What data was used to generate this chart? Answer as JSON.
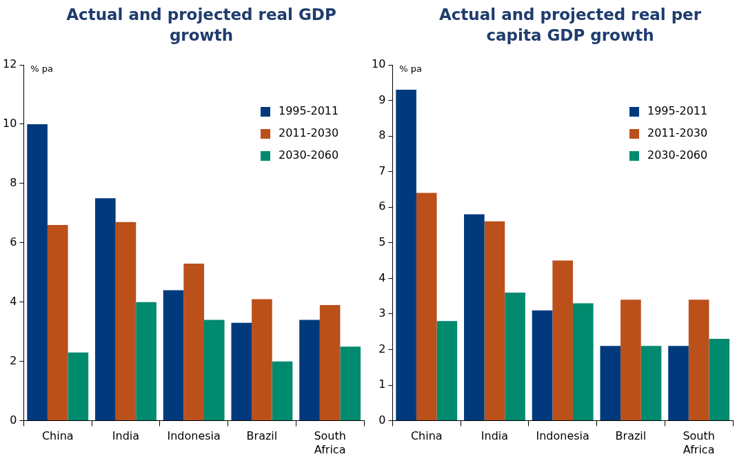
{
  "chart_data": [
    {
      "type": "bar",
      "title": "Actual and projected real GDP growth",
      "ylabel": "% pa",
      "categories": [
        "China",
        "India",
        "Indonesia",
        "Brazil",
        "South Africa"
      ],
      "series": [
        {
          "name": "1995-2011",
          "color": "#003a7d",
          "values": [
            10.0,
            7.5,
            4.4,
            3.3,
            3.4
          ]
        },
        {
          "name": "2011-2030",
          "color": "#bb501b",
          "values": [
            6.6,
            6.7,
            5.3,
            4.1,
            3.9
          ]
        },
        {
          "name": "2030-2060",
          "color": "#008a6e",
          "values": [
            2.3,
            4.0,
            3.4,
            2.0,
            2.5
          ]
        }
      ],
      "ylim": [
        0,
        12
      ],
      "yticks": [
        0,
        2,
        4,
        6,
        8,
        10,
        12
      ],
      "grid": false,
      "legend": "top right"
    },
    {
      "type": "bar",
      "title": "Actual and projected real per capita GDP growth",
      "ylabel": "% pa",
      "categories": [
        "China",
        "India",
        "Indonesia",
        "Brazil",
        "South Africa"
      ],
      "series": [
        {
          "name": "1995-2011",
          "color": "#003a7d",
          "values": [
            9.3,
            5.8,
            3.1,
            2.1,
            2.1
          ]
        },
        {
          "name": "2011-2030",
          "color": "#bb501b",
          "values": [
            6.4,
            5.6,
            4.5,
            3.4,
            3.4
          ]
        },
        {
          "name": "2030-2060",
          "color": "#008a6e",
          "values": [
            2.8,
            3.6,
            3.3,
            2.1,
            2.3
          ]
        }
      ],
      "ylim": [
        0,
        10
      ],
      "yticks": [
        0,
        1,
        2,
        3,
        4,
        5,
        6,
        7,
        8,
        9,
        10
      ],
      "grid": false,
      "legend": "top right"
    }
  ]
}
